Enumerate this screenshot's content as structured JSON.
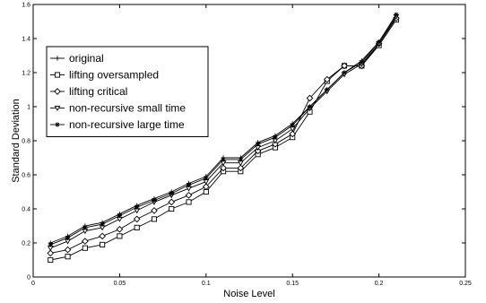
{
  "chart_data": {
    "type": "line",
    "title": "",
    "xlabel": "Noise Level",
    "ylabel": "Standard Deviation",
    "xlim": [
      0,
      0.25
    ],
    "ylim": [
      0,
      1.6
    ],
    "xticks": [
      0,
      0.05,
      0.1,
      0.15,
      0.2,
      0.25
    ],
    "xtick_labels": [
      "0",
      "0.05",
      "0.1",
      "0.15",
      "0.2",
      "0.25"
    ],
    "yticks": [
      0,
      0.2,
      0.4,
      0.6,
      0.8,
      1,
      1.2,
      1.4,
      1.6
    ],
    "ytick_labels": [
      "0",
      "0.2",
      "0.4",
      "0.6",
      "0.8",
      "1",
      "1.2",
      "1.4",
      "1.6"
    ],
    "grid": false,
    "legend_position": "top-left",
    "x": [
      0.01,
      0.02,
      0.03,
      0.04,
      0.05,
      0.06,
      0.07,
      0.08,
      0.09,
      0.1,
      0.11,
      0.12,
      0.13,
      0.14,
      0.15,
      0.16,
      0.17,
      0.18,
      0.19,
      0.2,
      0.21
    ],
    "series": [
      {
        "name": "original",
        "marker": "plus",
        "values": [
          0.2,
          0.24,
          0.3,
          0.32,
          0.37,
          0.42,
          0.46,
          0.5,
          0.55,
          0.59,
          0.7,
          0.7,
          0.79,
          0.83,
          0.9,
          1.0,
          1.1,
          1.2,
          1.27,
          1.38,
          1.54
        ]
      },
      {
        "name": "lifting oversampled",
        "marker": "square",
        "values": [
          0.1,
          0.12,
          0.17,
          0.19,
          0.24,
          0.29,
          0.34,
          0.4,
          0.44,
          0.5,
          0.62,
          0.62,
          0.72,
          0.76,
          0.82,
          0.97,
          1.15,
          1.24,
          1.24,
          1.36,
          1.51
        ]
      },
      {
        "name": "lifting critical",
        "marker": "diamond",
        "values": [
          0.14,
          0.16,
          0.21,
          0.24,
          0.28,
          0.34,
          0.39,
          0.44,
          0.48,
          0.53,
          0.64,
          0.64,
          0.74,
          0.78,
          0.84,
          1.05,
          1.16,
          1.24,
          1.24,
          1.37,
          1.52
        ]
      },
      {
        "name": "non-recursive small time",
        "marker": "triangle-down",
        "values": [
          0.17,
          0.21,
          0.27,
          0.29,
          0.34,
          0.39,
          0.44,
          0.48,
          0.52,
          0.56,
          0.67,
          0.67,
          0.76,
          0.8,
          0.87,
          0.99,
          1.09,
          1.19,
          1.25,
          1.37,
          1.53
        ]
      },
      {
        "name": "non-recursive large time",
        "marker": "star",
        "values": [
          0.19,
          0.23,
          0.29,
          0.31,
          0.36,
          0.41,
          0.45,
          0.49,
          0.54,
          0.58,
          0.69,
          0.69,
          0.78,
          0.82,
          0.89,
          1.0,
          1.1,
          1.2,
          1.26,
          1.38,
          1.54
        ]
      }
    ]
  }
}
